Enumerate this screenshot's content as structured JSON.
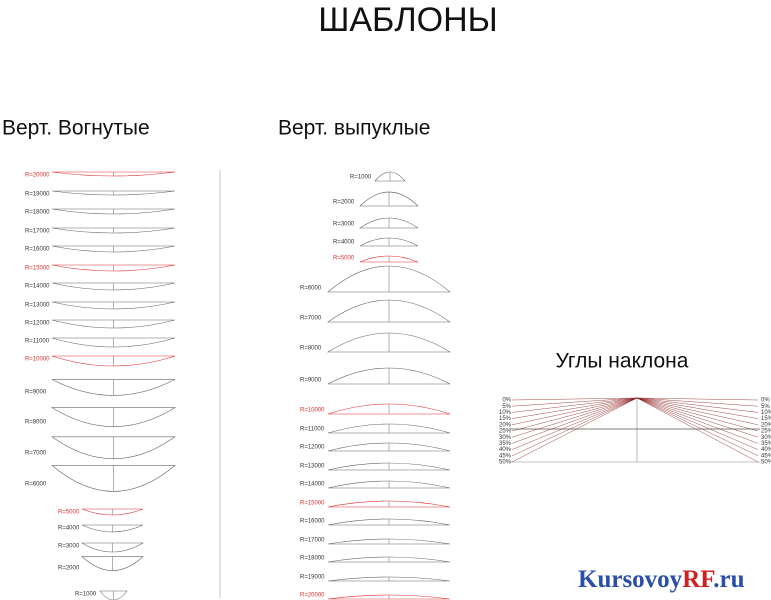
{
  "title": "ШАБЛОНЫ",
  "concave": {
    "title": "Верт. Вогнутые",
    "items": [
      {
        "label": "R=20000",
        "color": "#e03030"
      },
      {
        "label": "R=19000",
        "color": "#333333"
      },
      {
        "label": "R=18000",
        "color": "#333333"
      },
      {
        "label": "R=17000",
        "color": "#333333"
      },
      {
        "label": "R=16000",
        "color": "#333333"
      },
      {
        "label": "R=15000",
        "color": "#e03030"
      },
      {
        "label": "R=14000",
        "color": "#333333"
      },
      {
        "label": "R=13000",
        "color": "#333333"
      },
      {
        "label": "R=12000",
        "color": "#333333"
      },
      {
        "label": "R=11000",
        "color": "#333333"
      },
      {
        "label": "R=10000",
        "color": "#e03030"
      },
      {
        "label": "R=9000",
        "color": "#333333"
      },
      {
        "label": "R=8000",
        "color": "#333333"
      },
      {
        "label": "R=7000",
        "color": "#333333"
      },
      {
        "label": "R=6000",
        "color": "#333333"
      },
      {
        "label": "R=5000",
        "color": "#e03030"
      },
      {
        "label": "R=4000",
        "color": "#333333"
      },
      {
        "label": "R=3000",
        "color": "#333333"
      },
      {
        "label": "R=2000",
        "color": "#333333"
      },
      {
        "label": "R=1000",
        "color": "#333333"
      }
    ]
  },
  "convex": {
    "title": "Верт. выпуклые",
    "items": [
      {
        "label": "R=1000",
        "color": "#333333"
      },
      {
        "label": "R=2000",
        "color": "#333333"
      },
      {
        "label": "R=3000",
        "color": "#333333"
      },
      {
        "label": "R=4000",
        "color": "#333333"
      },
      {
        "label": "R=5000",
        "color": "#e03030"
      },
      {
        "label": "R=6000",
        "color": "#333333"
      },
      {
        "label": "R=7000",
        "color": "#333333"
      },
      {
        "label": "R=8000",
        "color": "#333333"
      },
      {
        "label": "R=9000",
        "color": "#333333"
      },
      {
        "label": "R=10000",
        "color": "#e03030"
      },
      {
        "label": "R=11000",
        "color": "#333333"
      },
      {
        "label": "R=12000",
        "color": "#333333"
      },
      {
        "label": "R=13000",
        "color": "#333333"
      },
      {
        "label": "R=14000",
        "color": "#333333"
      },
      {
        "label": "R=15000",
        "color": "#e03030"
      },
      {
        "label": "R=16000",
        "color": "#333333"
      },
      {
        "label": "R=17000",
        "color": "#333333"
      },
      {
        "label": "R=18000",
        "color": "#333333"
      },
      {
        "label": "R=19000",
        "color": "#333333"
      },
      {
        "label": "R=20000",
        "color": "#e03030"
      }
    ]
  },
  "angles": {
    "title": "Углы наклона",
    "labels": [
      "0%",
      "5%",
      "10%",
      "15%",
      "20%",
      "25%",
      "30%",
      "35%",
      "40%",
      "45%",
      "50%"
    ]
  },
  "watermark": {
    "part1": "Kursovoy",
    "part2": "RF",
    "part3": ".ru"
  }
}
